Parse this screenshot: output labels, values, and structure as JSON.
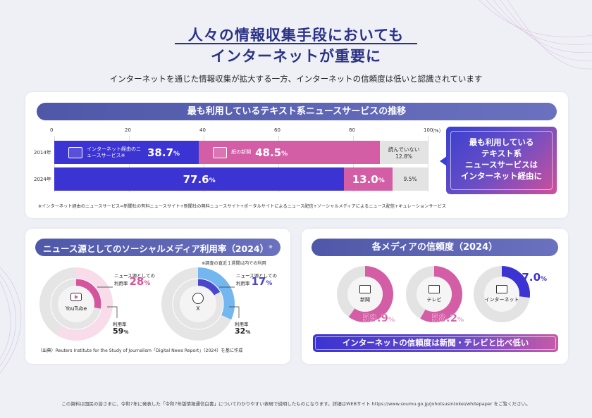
{
  "header": {
    "title_line1": "人々の情報収集手段においても",
    "title_line2": "インターネットが重要に",
    "subtitle": "インターネットを通じた情報収集が拡大する一方、インターネットの信頼度は低いと認識されています"
  },
  "news_trend": {
    "heading": "最も利用しているテキスト系ニュースサービスの推移",
    "callout": [
      "最も利用している",
      "テキスト系",
      "ニュースサービスは",
      "インターネット経由に"
    ],
    "note": "※インターネット経由のニュースサービス=新聞社の有料ニュースサイト+新聞社の無料ニュースサイト+ポータルサイトによるニュース配信+ソーシャルメディアによるニュース配信+キュレーションサービス"
  },
  "social_media": {
    "heading": "ニュース源としてのソーシャルメディア利用率（2024）",
    "heading_mark": "※",
    "survey_note": "※調査の直近１週間以内での利用",
    "news_label_1": "ニュース源としての",
    "news_label_2": "利用率",
    "usage_label": "利用率",
    "source": "（出典）Reuters Institute for the Study of Journalism「Digital News Report」（2024）を基に作成"
  },
  "trust": {
    "heading": "各メディアの信頼度（2024）",
    "conclusion": "インターネットの信頼度は新聞・テレビと比べ低い"
  },
  "footer": "この資料は国民の皆さまに、令和7年に発表した「令和7年版情報通信白書」についてわかりやすい表現で説明したものになります。詳細はWEBサイト https://www.soumu.go.jp/johotsusintokei/whitepaper をご覧ください。",
  "colors": {
    "internet": "#3b33d2",
    "newspaper": "#d45ea6",
    "none": "#e3e3e3",
    "youtube": "#d4559b",
    "x": "#4a47cc",
    "light_pink": "#f9dce9",
    "light_blue": "#74b7f0"
  },
  "chart_data": [
    {
      "type": "bar",
      "stacked": true,
      "orientation": "horizontal",
      "title": "最も利用しているテキスト系ニュースサービスの推移",
      "x_ticks": [
        "0",
        "20",
        "40",
        "60",
        "80",
        "100"
      ],
      "x_unit": "（%）",
      "xlim": [
        0,
        100
      ],
      "categories": [
        "2014年",
        "2024年"
      ],
      "series": [
        {
          "name": "インターネット経由のニュースサービス※",
          "values": [
            38.7,
            77.6
          ],
          "labels": [
            "38.7%",
            "77.6%"
          ]
        },
        {
          "name": "紙の新聞",
          "values": [
            48.5,
            13.0
          ],
          "labels": [
            "48.5%",
            "13.0%"
          ]
        },
        {
          "name": "読んでいない",
          "values": [
            12.8,
            9.5
          ],
          "labels": [
            "12.8%",
            "9.5%"
          ]
        }
      ]
    },
    {
      "type": "pie",
      "title": "ニュース源としてのソーシャルメディア利用率（2024）",
      "platforms": [
        {
          "name": "YouTube",
          "usage": 59,
          "usage_label": "59%",
          "news": 28,
          "news_label": "28%"
        },
        {
          "name": "X",
          "usage": 32,
          "usage_label": "32%",
          "news": 17,
          "news_label": "17%"
        }
      ]
    },
    {
      "type": "pie",
      "title": "各メディアの信頼度（2024）",
      "media": [
        {
          "name": "新聞",
          "value": 59.9,
          "label": "59.9%"
        },
        {
          "name": "テレビ",
          "value": 58.2,
          "label": "58.2%"
        },
        {
          "name": "インターネット",
          "value": 27.0,
          "label": "27.0%"
        }
      ]
    }
  ]
}
